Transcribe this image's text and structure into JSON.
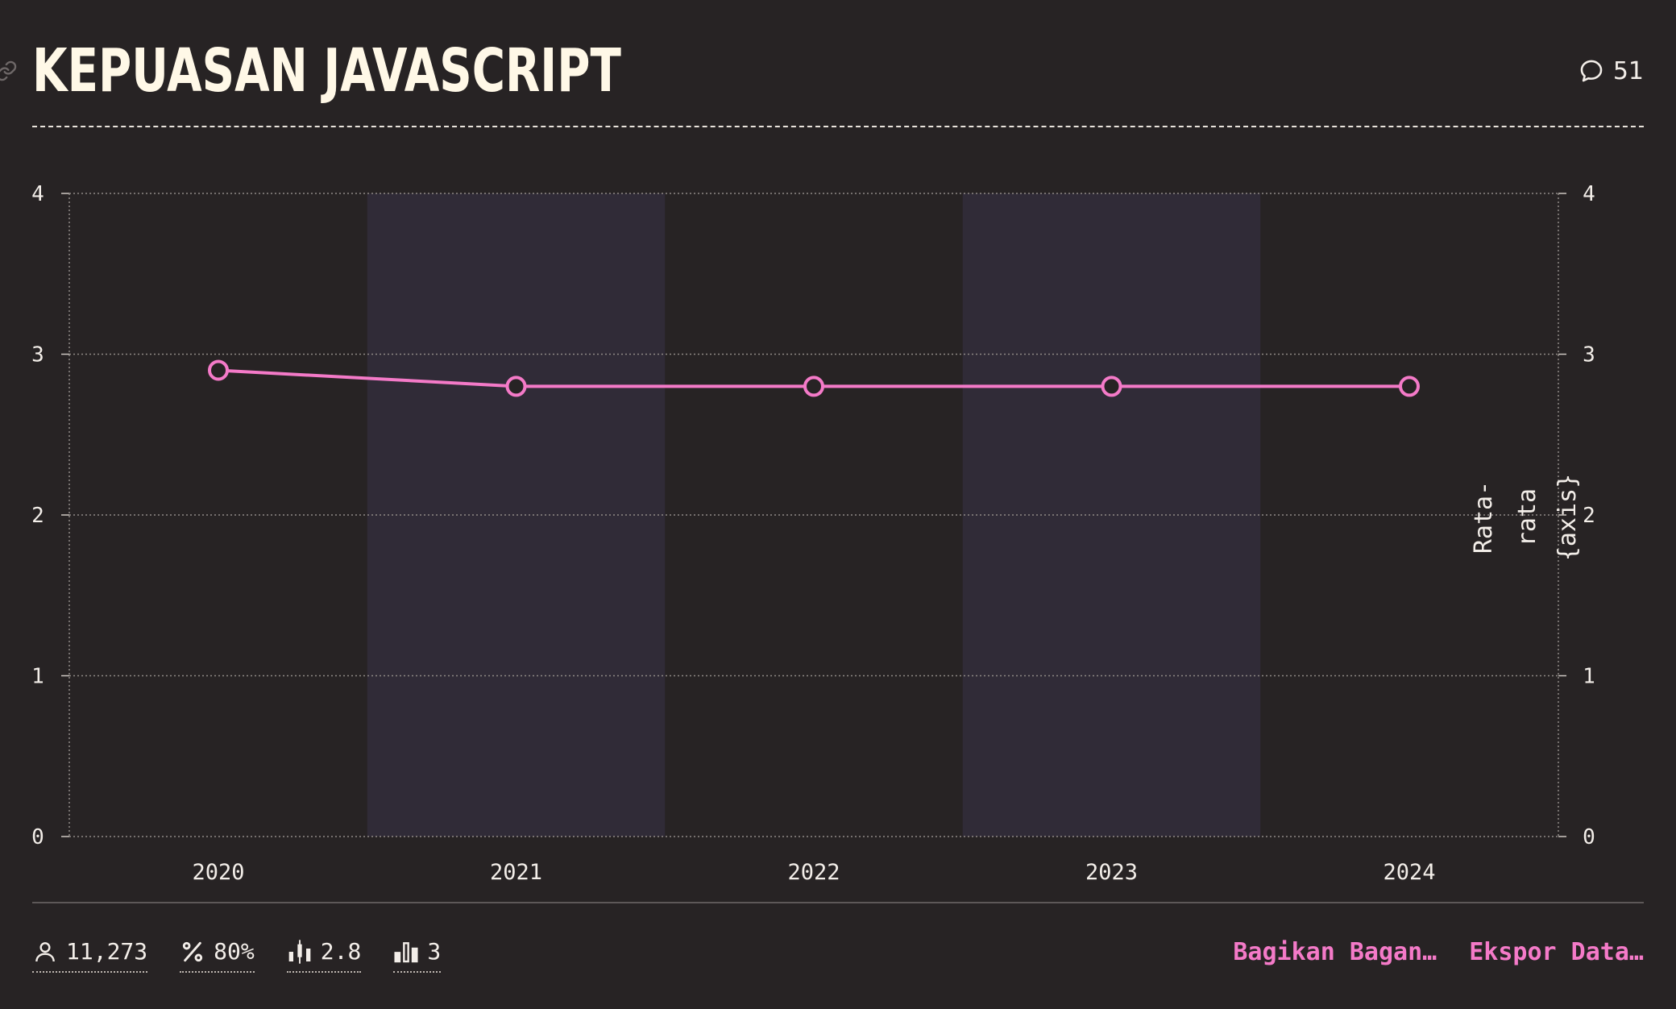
{
  "header": {
    "title": "KEPUASAN JAVASCRIPT",
    "comment_count": "51"
  },
  "icons": {
    "link": "link-icon",
    "comments": "speech-bubble-icon",
    "respondents": "user-icon",
    "percentage": "percent-icon",
    "average": "candlestick-icon",
    "score": "bar-chart-icon"
  },
  "colors": {
    "background": "#272324",
    "line": "#f47ac8",
    "band": "#302b37",
    "text": "#f3eee9",
    "accent": "#f47ac8"
  },
  "chart_data": {
    "type": "line",
    "title": "KEPUASAN JAVASCRIPT",
    "x": [
      "2020",
      "2021",
      "2022",
      "2023",
      "2024"
    ],
    "series": [
      {
        "values": [
          2.9,
          2.8,
          2.8,
          2.8,
          2.8
        ]
      }
    ],
    "ylim": [
      0,
      4
    ],
    "y_ticks": [
      "0",
      "1",
      "2",
      "3",
      "4"
    ],
    "y_ticks_right": [
      "0",
      "1",
      "2",
      "3",
      "4"
    ],
    "ylabel_right": [
      "Rata-",
      "rata",
      "{axis}"
    ],
    "grid": true,
    "alternating_bands": true
  },
  "stats": [
    {
      "icon": "user-icon",
      "value": "11,273"
    },
    {
      "icon": "percent-icon",
      "value": "80%"
    },
    {
      "icon": "candlestick-icon",
      "value": "2.8"
    },
    {
      "icon": "bar-chart-icon",
      "value": "3"
    }
  ],
  "actions": {
    "share": "Bagikan Bagan…",
    "export": "Ekspor Data…"
  }
}
